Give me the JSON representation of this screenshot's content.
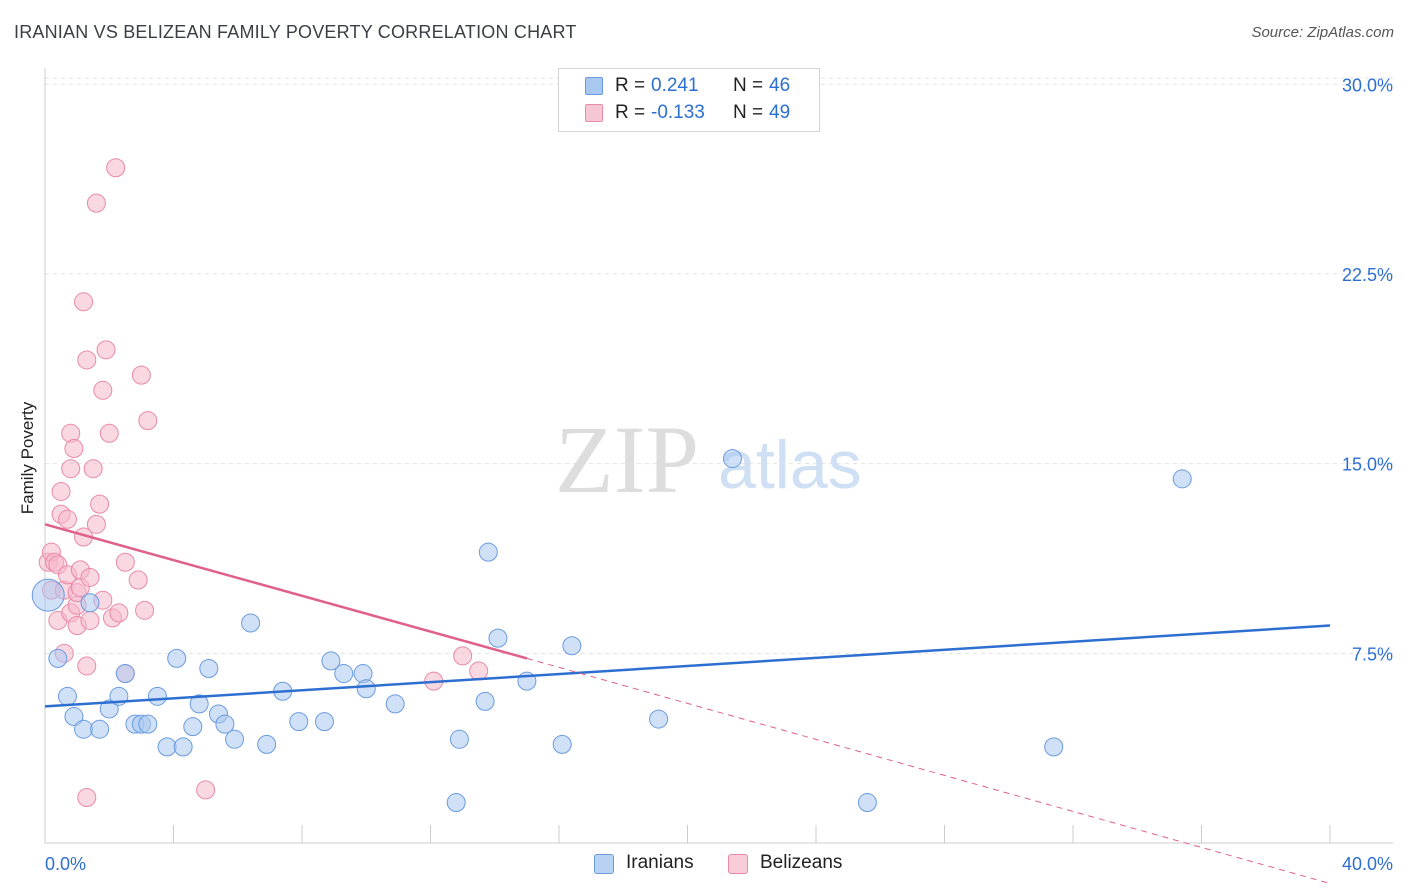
{
  "header": {
    "title": "IRANIAN VS BELIZEAN FAMILY POVERTY CORRELATION CHART",
    "source": "Source: ZipAtlas.com"
  },
  "watermark": {
    "zip": "ZIP",
    "atlas": "atlas"
  },
  "legend": {
    "r_label": "R =",
    "n_label": "N =",
    "iranians": {
      "r": "0.241",
      "n": "46"
    },
    "belizeans": {
      "r": "-0.133",
      "n": "49"
    }
  },
  "colors": {
    "iranians_fill": "#a9c8f0",
    "iranians_stroke": "#6a9be0",
    "iranians_line": "#2d6fd1",
    "belizeans_fill": "#f5b8cb",
    "belizeans_stroke": "#e98aa8",
    "belizeans_line": "#e0608b",
    "tick_label": "#2d6fd1",
    "grid": "#e2e2e2"
  },
  "chart_data": {
    "type": "scatter",
    "title": "IRANIAN VS BELIZEAN FAMILY POVERTY CORRELATION CHART",
    "xlabel": "",
    "ylabel": "Family Poverty",
    "xlim": [
      0,
      40
    ],
    "ylim": [
      0,
      31
    ],
    "x_tick_labels": [
      "0.0%",
      "40.0%"
    ],
    "y_ticks": [
      7.5,
      15.0,
      22.5,
      30.0
    ],
    "y_tick_labels": [
      "7.5%",
      "15.0%",
      "22.5%",
      "30.0%"
    ],
    "grid": true,
    "legend_position": "top-center",
    "series": [
      {
        "name": "Iranians",
        "points": [
          [
            0.1,
            9.8
          ],
          [
            0.4,
            7.3
          ],
          [
            0.7,
            5.8
          ],
          [
            0.9,
            5.0
          ],
          [
            1.2,
            4.5
          ],
          [
            1.4,
            9.5
          ],
          [
            1.7,
            4.5
          ],
          [
            2.0,
            5.3
          ],
          [
            2.3,
            5.8
          ],
          [
            2.5,
            6.7
          ],
          [
            2.8,
            4.7
          ],
          [
            3.0,
            4.7
          ],
          [
            3.2,
            4.7
          ],
          [
            3.5,
            5.8
          ],
          [
            3.8,
            3.8
          ],
          [
            4.1,
            7.3
          ],
          [
            4.3,
            3.8
          ],
          [
            4.6,
            4.6
          ],
          [
            4.8,
            5.5
          ],
          [
            5.1,
            6.9
          ],
          [
            5.4,
            5.1
          ],
          [
            5.6,
            4.7
          ],
          [
            5.9,
            4.1
          ],
          [
            6.4,
            8.7
          ],
          [
            6.9,
            3.9
          ],
          [
            7.4,
            6.0
          ],
          [
            7.9,
            4.8
          ],
          [
            8.7,
            4.8
          ],
          [
            8.9,
            7.2
          ],
          [
            9.3,
            6.7
          ],
          [
            9.9,
            6.7
          ],
          [
            10.0,
            6.1
          ],
          [
            10.9,
            5.5
          ],
          [
            12.8,
            1.6
          ],
          [
            12.9,
            4.1
          ],
          [
            13.7,
            5.6
          ],
          [
            13.8,
            11.5
          ],
          [
            14.1,
            8.1
          ],
          [
            15.0,
            6.4
          ],
          [
            16.1,
            3.9
          ],
          [
            16.4,
            7.8
          ],
          [
            19.1,
            4.9
          ],
          [
            21.4,
            15.2
          ],
          [
            25.6,
            1.6
          ],
          [
            31.4,
            3.8
          ],
          [
            35.4,
            14.4
          ]
        ]
      },
      {
        "name": "Belizeans",
        "points": [
          [
            0.1,
            11.1
          ],
          [
            0.2,
            11.5
          ],
          [
            0.2,
            10.0
          ],
          [
            0.3,
            11.1
          ],
          [
            0.4,
            8.8
          ],
          [
            0.4,
            11.0
          ],
          [
            0.5,
            13.0
          ],
          [
            0.5,
            13.9
          ],
          [
            0.6,
            10.0
          ],
          [
            0.6,
            7.5
          ],
          [
            0.7,
            12.8
          ],
          [
            0.7,
            10.6
          ],
          [
            0.8,
            14.8
          ],
          [
            0.8,
            9.1
          ],
          [
            0.8,
            16.2
          ],
          [
            0.9,
            15.6
          ],
          [
            1.0,
            8.6
          ],
          [
            1.0,
            9.4
          ],
          [
            1.0,
            9.9
          ],
          [
            1.1,
            10.1
          ],
          [
            1.1,
            10.8
          ],
          [
            1.2,
            12.1
          ],
          [
            1.2,
            21.4
          ],
          [
            1.3,
            7.0
          ],
          [
            1.3,
            19.1
          ],
          [
            1.3,
            1.8
          ],
          [
            1.4,
            10.5
          ],
          [
            1.4,
            8.8
          ],
          [
            1.5,
            14.8
          ],
          [
            1.6,
            12.6
          ],
          [
            1.6,
            25.3
          ],
          [
            1.7,
            13.4
          ],
          [
            1.8,
            9.6
          ],
          [
            1.8,
            17.9
          ],
          [
            1.9,
            19.5
          ],
          [
            2.0,
            16.2
          ],
          [
            2.1,
            8.9
          ],
          [
            2.2,
            26.7
          ],
          [
            2.3,
            9.1
          ],
          [
            2.5,
            6.7
          ],
          [
            2.5,
            11.1
          ],
          [
            2.9,
            10.4
          ],
          [
            3.0,
            18.5
          ],
          [
            3.1,
            9.2
          ],
          [
            3.2,
            16.7
          ],
          [
            5.0,
            2.1
          ],
          [
            12.1,
            6.4
          ],
          [
            13.0,
            7.4
          ],
          [
            13.5,
            6.8
          ]
        ]
      }
    ],
    "trend_lines": [
      {
        "series": "Iranians",
        "x": [
          0,
          40
        ],
        "y": [
          5.4,
          8.6
        ],
        "style": "solid"
      },
      {
        "series": "Belizeans",
        "x": [
          0,
          15
        ],
        "y": [
          12.6,
          7.3
        ],
        "style": "solid"
      },
      {
        "series": "Belizeans",
        "x": [
          15,
          40
        ],
        "y": [
          7.3,
          -1.6
        ],
        "style": "dashed"
      }
    ]
  },
  "bottom_legend": {
    "iranians_label": "Iranians",
    "belizeans_label": "Belizeans"
  }
}
